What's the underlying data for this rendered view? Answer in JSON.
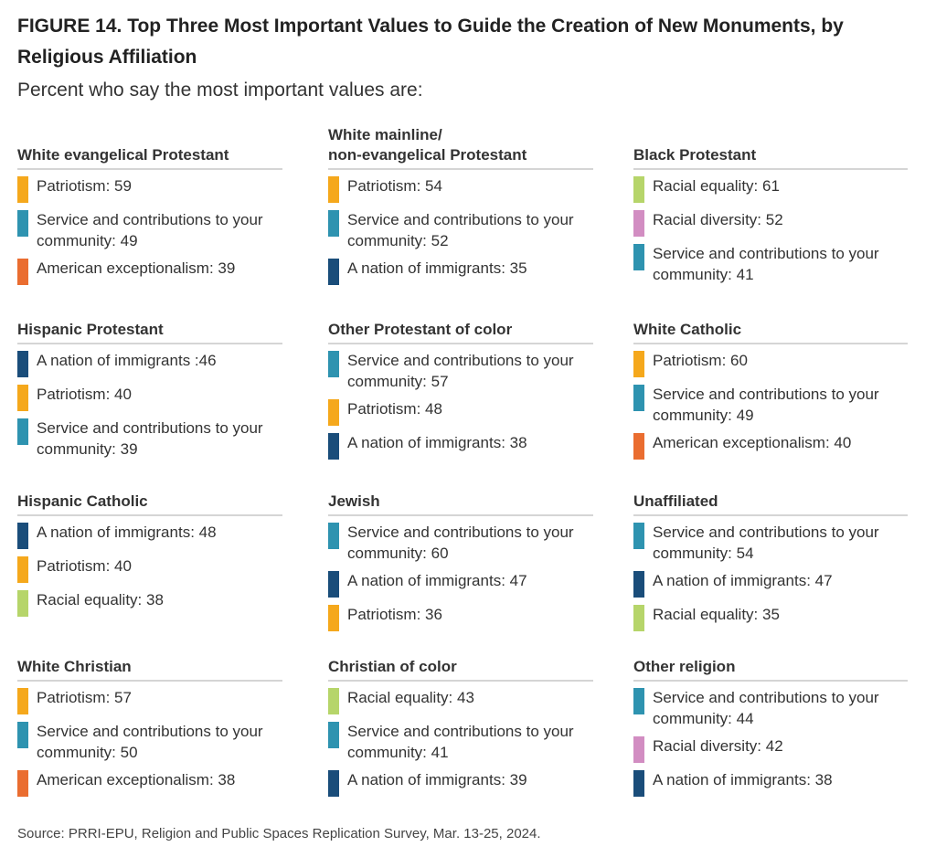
{
  "figure": {
    "title": "FIGURE 14. Top Three Most Important Values to Guide the Creation of New Monuments, by Religious Affiliation",
    "subtitle": "Percent who say the most important values are:",
    "source": "Source: PRRI-EPU, Religion and Public Spaces Replication Survey, Mar. 13-25, 2024."
  },
  "colors": {
    "Patriotism": "#f5a81c",
    "Service and contributions to your community": "#2e93b0",
    "American exceptionalism": "#ea6d30",
    "A nation of immigrants": "#1a4d7a",
    "Racial equality": "#b6d56a",
    "Racial diversity": "#d28dc2"
  },
  "chart_data": {
    "type": "table",
    "groups": [
      {
        "name": "White evangelical Protestant",
        "items": [
          {
            "value_name": "Patriotism",
            "label": "Patriotism: 59",
            "value": 59
          },
          {
            "value_name": "Service and contributions to your community",
            "label": "Service and contributions to your community: 49",
            "value": 49
          },
          {
            "value_name": "American exceptionalism",
            "label": "American exceptionalism: 39",
            "value": 39
          }
        ]
      },
      {
        "name": "White mainline/\nnon-evangelical Protestant",
        "items": [
          {
            "value_name": "Patriotism",
            "label": "Patriotism: 54",
            "value": 54
          },
          {
            "value_name": "Service and contributions to your community",
            "label": "Service and contributions to your community: 52",
            "value": 52
          },
          {
            "value_name": "A nation of immigrants",
            "label": "A nation of immigrants: 35",
            "value": 35
          }
        ]
      },
      {
        "name": "Black Protestant",
        "items": [
          {
            "value_name": "Racial equality",
            "label": "Racial equality: 61",
            "value": 61
          },
          {
            "value_name": "Racial diversity",
            "label": "Racial diversity: 52",
            "value": 52
          },
          {
            "value_name": "Service and contributions to your community",
            "label": "Service and contributions to your community: 41",
            "value": 41
          }
        ]
      },
      {
        "name": "Hispanic Protestant",
        "items": [
          {
            "value_name": "A nation of immigrants",
            "label": "A nation of immigrants :46",
            "value": 46
          },
          {
            "value_name": "Patriotism",
            "label": "Patriotism: 40",
            "value": 40
          },
          {
            "value_name": "Service and contributions to your community",
            "label": "Service and contributions to your community: 39",
            "value": 39
          }
        ]
      },
      {
        "name": "Other Protestant of color",
        "items": [
          {
            "value_name": "Service and contributions to your community",
            "label": "Service and contributions to your community: 57",
            "value": 57
          },
          {
            "value_name": "Patriotism",
            "label": "Patriotism: 48",
            "value": 48
          },
          {
            "value_name": "A nation of immigrants",
            "label": "A nation of immigrants: 38",
            "value": 38
          }
        ]
      },
      {
        "name": "White Catholic",
        "items": [
          {
            "value_name": "Patriotism",
            "label": "Patriotism: 60",
            "value": 60
          },
          {
            "value_name": "Service and contributions to your community",
            "label": "Service and contributions to your community: 49",
            "value": 49
          },
          {
            "value_name": "American exceptionalism",
            "label": "American exceptionalism: 40",
            "value": 40
          }
        ]
      },
      {
        "name": "Hispanic Catholic",
        "items": [
          {
            "value_name": "A nation of immigrants",
            "label": "A nation of immigrants: 48",
            "value": 48
          },
          {
            "value_name": "Patriotism",
            "label": "Patriotism: 40",
            "value": 40
          },
          {
            "value_name": "Racial equality",
            "label": "Racial equality: 38",
            "value": 38
          }
        ]
      },
      {
        "name": "Jewish",
        "items": [
          {
            "value_name": "Service and contributions to your community",
            "label": "Service and contributions to your community: 60",
            "value": 60
          },
          {
            "value_name": "A nation of immigrants",
            "label": "A nation of immigrants: 47",
            "value": 47
          },
          {
            "value_name": "Patriotism",
            "label": "Patriotism: 36",
            "value": 36
          }
        ]
      },
      {
        "name": "Unaffiliated",
        "items": [
          {
            "value_name": "Service and contributions to your community",
            "label": "Service and contributions to your community: 54",
            "value": 54
          },
          {
            "value_name": "A nation of immigrants",
            "label": "A nation of immigrants: 47",
            "value": 47
          },
          {
            "value_name": "Racial equality",
            "label": "Racial equality: 35",
            "value": 35
          }
        ]
      },
      {
        "name": "White Christian",
        "items": [
          {
            "value_name": "Patriotism",
            "label": "Patriotism: 57",
            "value": 57
          },
          {
            "value_name": "Service and contributions to your community",
            "label": "Service and contributions to your community: 50",
            "value": 50
          },
          {
            "value_name": "American exceptionalism",
            "label": "American exceptionalism: 38",
            "value": 38
          }
        ]
      },
      {
        "name": "Christian of color",
        "items": [
          {
            "value_name": "Racial equality",
            "label": "Racial equality: 43",
            "value": 43
          },
          {
            "value_name": "Service and contributions to your community",
            "label": "Service and contributions to your community: 41",
            "value": 41
          },
          {
            "value_name": "A nation of immigrants",
            "label": "A nation of immigrants: 39",
            "value": 39
          }
        ]
      },
      {
        "name": "Other religion",
        "items": [
          {
            "value_name": "Service and contributions to your community",
            "label": "Service and contributions to your community: 44",
            "value": 44
          },
          {
            "value_name": "Racial diversity",
            "label": "Racial diversity: 42",
            "value": 42
          },
          {
            "value_name": "A nation of immigrants",
            "label": "A nation of immigrants: 38",
            "value": 38
          }
        ]
      }
    ]
  }
}
